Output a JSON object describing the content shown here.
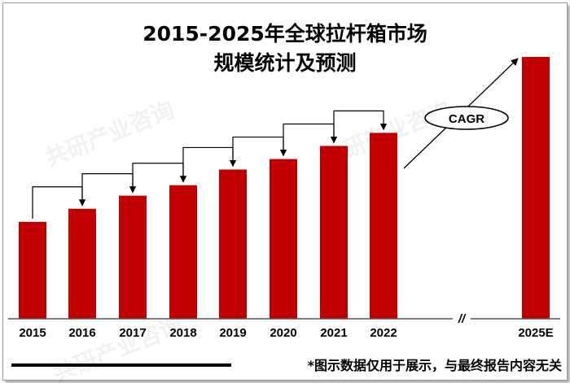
{
  "chart_data": {
    "type": "bar",
    "title_lines": [
      "2015-2025年全球拉杆箱市场",
      "规模统计及预测"
    ],
    "categories": [
      "2015",
      "2016",
      "2017",
      "2018",
      "2019",
      "2020",
      "2021",
      "2022",
      "2025E"
    ],
    "values": [
      37,
      42,
      47,
      51,
      57,
      61,
      66,
      71,
      100
    ],
    "value_unit": "relative (no axis printed)",
    "axis_break_label": "//",
    "annotation": "CAGR",
    "grid": false,
    "legend": "none",
    "bar_color": "#c00000"
  },
  "footnote": "*图示数据仅用于展示，与最终报告内容无关",
  "watermark": "共研产业咨询"
}
